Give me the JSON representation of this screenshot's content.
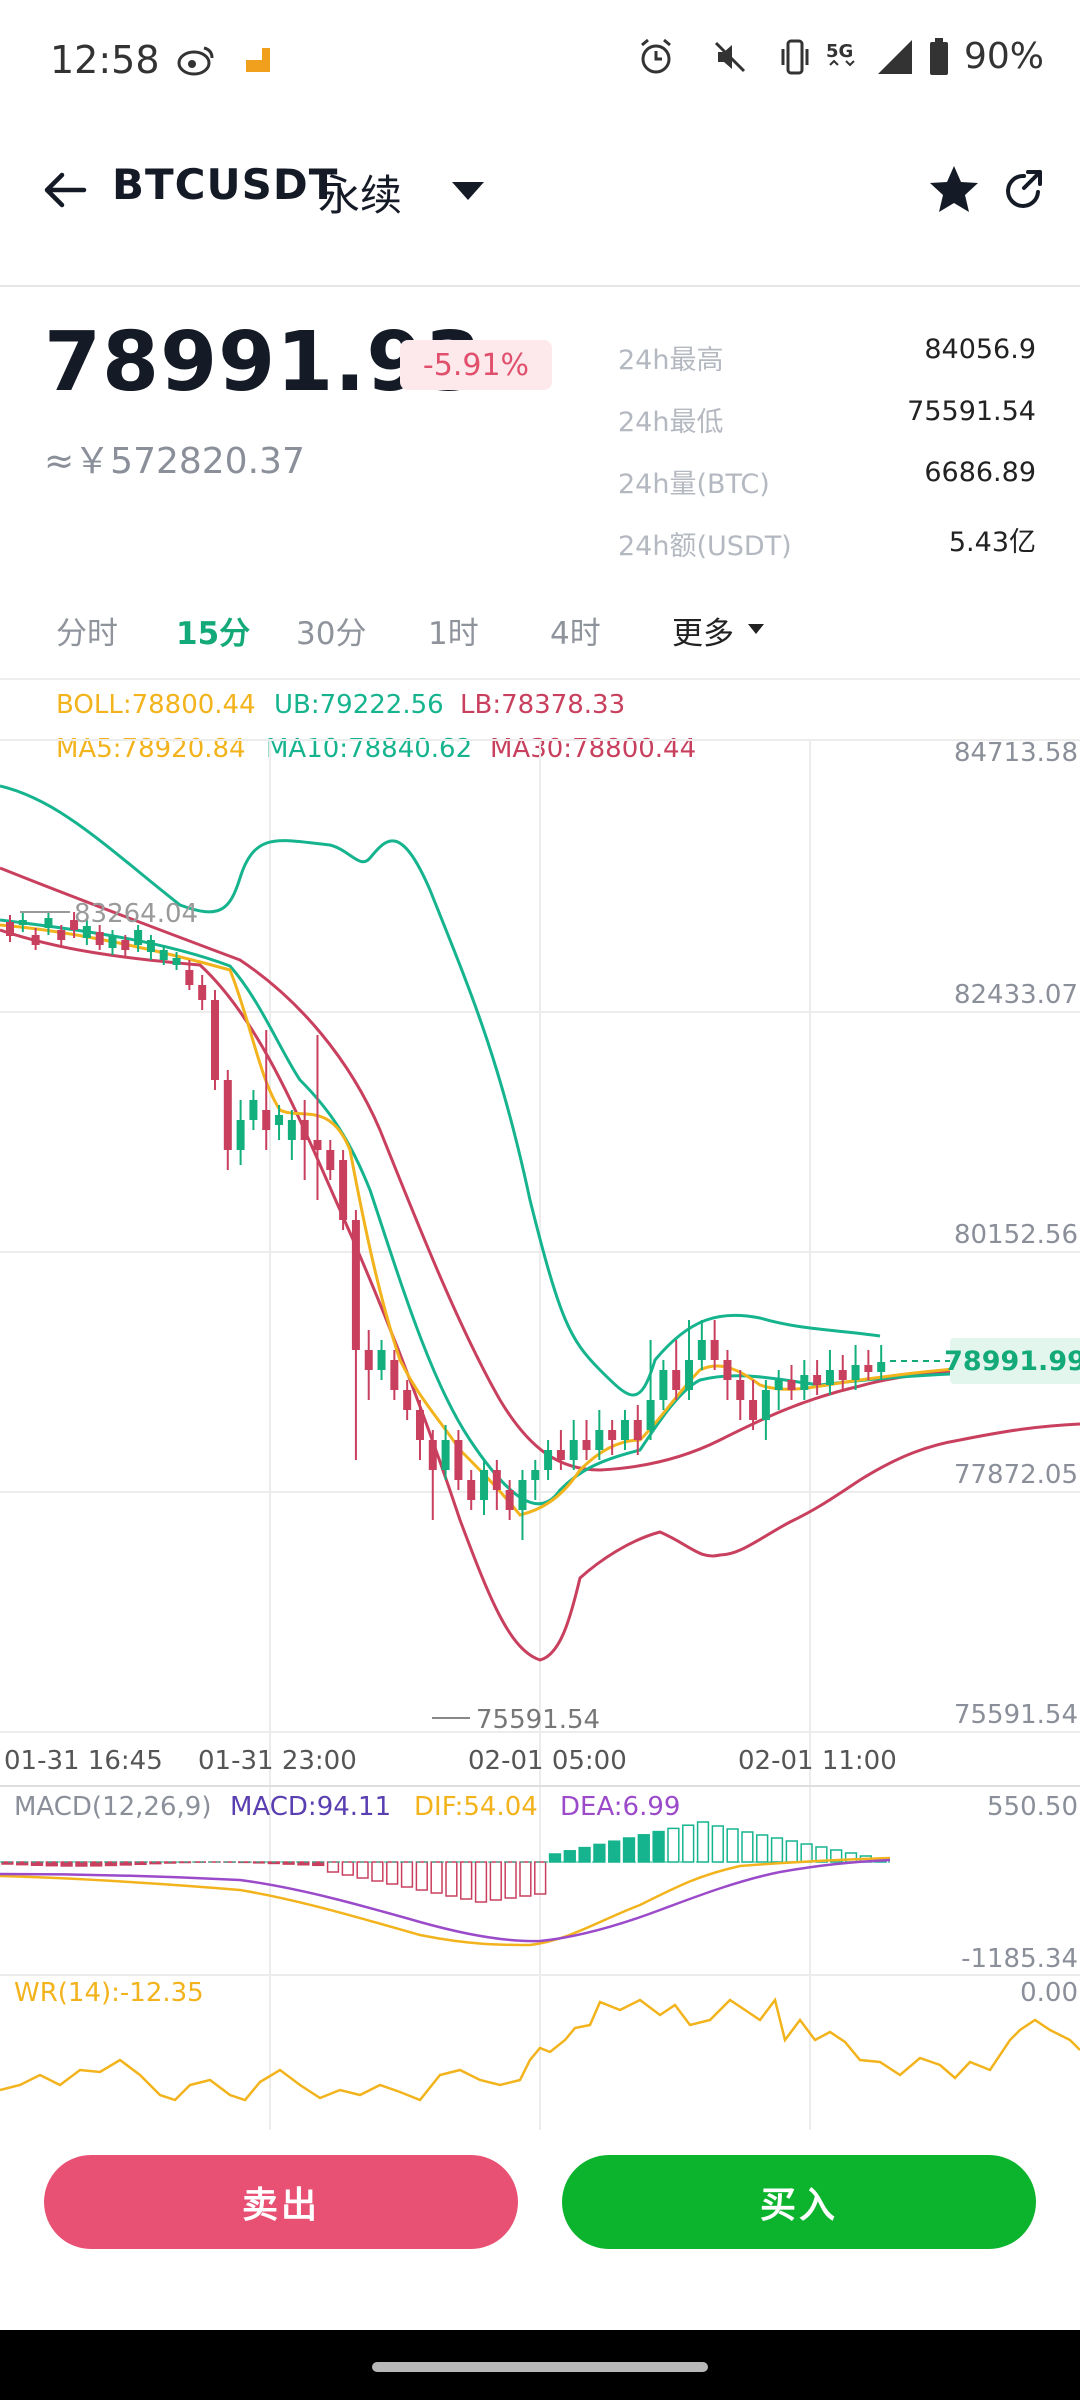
{
  "status_bar": {
    "time": "12:58",
    "battery": "90%",
    "icons": [
      "weibo-icon",
      "app-icon",
      "alarm-icon",
      "mute-icon",
      "vibrate-icon",
      "5g-icon",
      "signal-icon",
      "battery-icon"
    ]
  },
  "header": {
    "symbol": "BTCUSDT",
    "contract": "永续",
    "icons": [
      "back-arrow-icon",
      "caret-down-icon",
      "star-icon",
      "share-icon"
    ]
  },
  "ticker": {
    "price": "78991.93",
    "change": "-5.91%",
    "cny": "≈￥572820.37",
    "stats": [
      {
        "label": "24h最高",
        "value": "84056.9"
      },
      {
        "label": "24h最低",
        "value": "75591.54"
      },
      {
        "label": "24h量(BTC)",
        "value": "6686.89"
      },
      {
        "label": "24h额(USDT)",
        "value": "5.43亿"
      }
    ]
  },
  "tabs": [
    {
      "label": "分时",
      "active": false
    },
    {
      "label": "15分",
      "active": true
    },
    {
      "label": "30分",
      "active": false
    },
    {
      "label": "1时",
      "active": false
    },
    {
      "label": "4时",
      "active": false
    },
    {
      "label": "更多",
      "active": false
    }
  ],
  "indicators": {
    "boll": "BOLL:78800.44",
    "ub": "UB:79222.56",
    "lb": "LB:78378.33",
    "ma5": "MA5:78920.84",
    "ma10": "MA10:78840.62",
    "ma30": "MA30:78800.44",
    "macd_params": "MACD(12,26,9)",
    "macd": "MACD:94.11",
    "dif": "DIF:54.04",
    "dea": "DEA:6.99",
    "wr": "WR(14):-12.35"
  },
  "price_axis": [
    "84713.58",
    "82433.07",
    "80152.56",
    "77872.05",
    "75591.54"
  ],
  "macd_axis": [
    "550.50",
    "-1185.34"
  ],
  "wr_axis": [
    "0.00"
  ],
  "time_axis": [
    "01-31 16:45",
    "01-31 23:00",
    "02-01 05:00",
    "02-01 11:00"
  ],
  "annotations": {
    "high_marker": "83264.04",
    "low_marker": "75591.54",
    "last_price": "78991.99"
  },
  "colors": {
    "up": "#13b07e",
    "down": "#c9405f",
    "ma5": "#f2b31c",
    "ma10": "#16b48e",
    "ma30": "#c9405f",
    "dif": "#f2b31c",
    "dea": "#9b4bc9",
    "macd_label": "#5a3fb0",
    "sell": "#e85173",
    "buy": "#0cb32d"
  },
  "buttons": {
    "sell": "卖出",
    "buy": "买入"
  }
}
